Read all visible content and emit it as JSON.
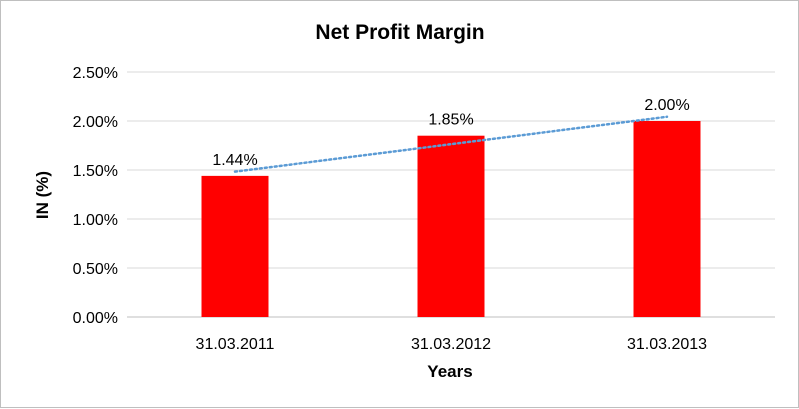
{
  "chart_data": {
    "type": "bar",
    "title": "Net Profit Margin",
    "xlabel": "Years",
    "ylabel": "IN (%)",
    "categories": [
      "31.03.2011",
      "31.03.2012",
      "31.03.2013"
    ],
    "series": [
      {
        "values": [
          1.44,
          1.85,
          2.0
        ],
        "color": "#ff0000"
      }
    ],
    "data_labels": [
      "1.44%",
      "1.85%",
      "2.00%"
    ],
    "y_ticks": [
      "0.00%",
      "0.50%",
      "1.00%",
      "1.50%",
      "2.00%",
      "2.50%"
    ],
    "ylim": [
      0,
      2.5
    ],
    "y_tick_step": 0.5,
    "grid": true,
    "legend": "none",
    "trendline": {
      "type": "linear",
      "style": "dotted",
      "color": "#5b9bd5"
    }
  }
}
